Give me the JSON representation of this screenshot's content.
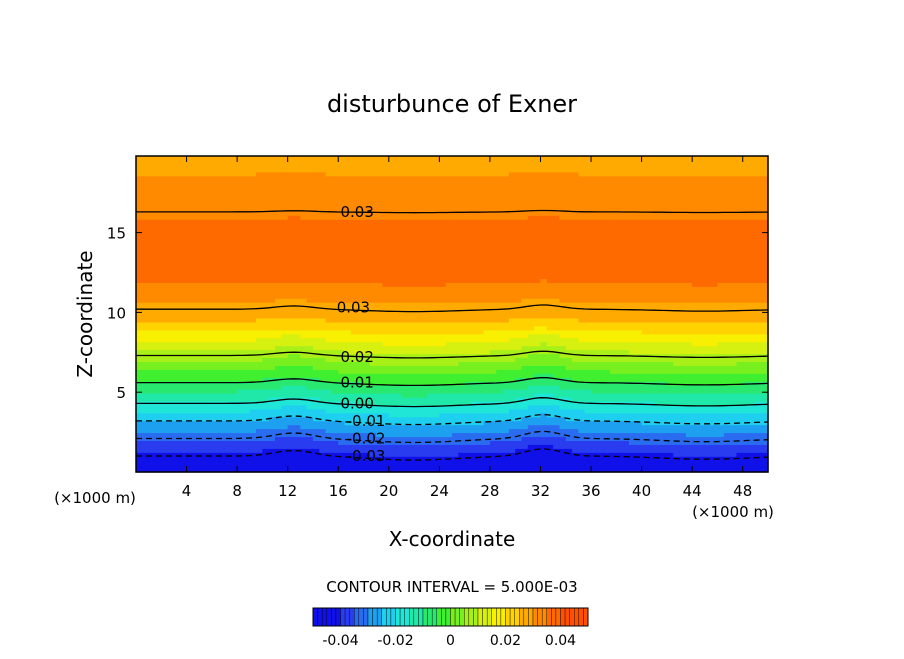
{
  "chart_data": {
    "type": "contour",
    "title": "disturbunce of Exner",
    "xlabel": "X-coordinate",
    "ylabel": "Z-coordinate",
    "x_unit_label": "(×1000 m)",
    "x_unit_label_right": "(×1000 m)",
    "xlim": [
      0,
      50
    ],
    "ylim": [
      0,
      19.8
    ],
    "x_ticks": [
      4,
      8,
      12,
      16,
      20,
      24,
      28,
      32,
      36,
      40,
      44,
      48
    ],
    "y_ticks": [
      5,
      10,
      15
    ],
    "contour_interval_text": "CONTOUR INTERVAL = 5.000E-03",
    "contour_labels": [
      {
        "text": "0.03",
        "x": 17.5,
        "z": 16.3
      },
      {
        "text": "0.03",
        "x": 17.2,
        "z": 10.3
      },
      {
        "text": "0.02",
        "x": 17.5,
        "z": 7.2
      },
      {
        "text": "0.01",
        "x": 17.5,
        "z": 5.6
      },
      {
        "text": "0.00",
        "x": 17.5,
        "z": 4.3
      },
      {
        "text": "-0.01",
        "x": 18.2,
        "z": 3.2
      },
      {
        "text": "-0.02",
        "x": 18.2,
        "z": 2.1
      },
      {
        "text": "-0.03",
        "x": 18.2,
        "z": 1.0
      }
    ],
    "colorbar": {
      "ticks": [
        -0.04,
        -0.02,
        0,
        0.02,
        0.04
      ],
      "tick_labels": [
        "-0.04",
        "-0.02",
        "0",
        "0.02",
        "0.04"
      ],
      "range": [
        -0.05,
        0.05
      ]
    },
    "field_levels": [
      {
        "value": -0.045,
        "color": "#1010e8"
      },
      {
        "value": -0.04,
        "color": "#2a3cf0"
      },
      {
        "value": -0.035,
        "color": "#2a6cf0"
      },
      {
        "value": -0.03,
        "color": "#1ea0f0"
      },
      {
        "value": -0.025,
        "color": "#1ecff0"
      },
      {
        "value": -0.02,
        "color": "#20e6d8"
      },
      {
        "value": -0.015,
        "color": "#20e8a8"
      },
      {
        "value": -0.01,
        "color": "#28e870"
      },
      {
        "value": -0.005,
        "color": "#40f030"
      },
      {
        "value": 0.0,
        "color": "#78f020"
      },
      {
        "value": 0.005,
        "color": "#a8f018"
      },
      {
        "value": 0.01,
        "color": "#d6f010"
      },
      {
        "value": 0.015,
        "color": "#f8f000"
      },
      {
        "value": 0.02,
        "color": "#ffd200"
      },
      {
        "value": 0.025,
        "color": "#ffaa00"
      },
      {
        "value": 0.03,
        "color": "#ff8a00"
      },
      {
        "value": 0.035,
        "color": "#ff6a00"
      },
      {
        "value": 0.04,
        "color": "#ff5000"
      }
    ],
    "grid": false,
    "legend": "colorbar-bottom"
  }
}
